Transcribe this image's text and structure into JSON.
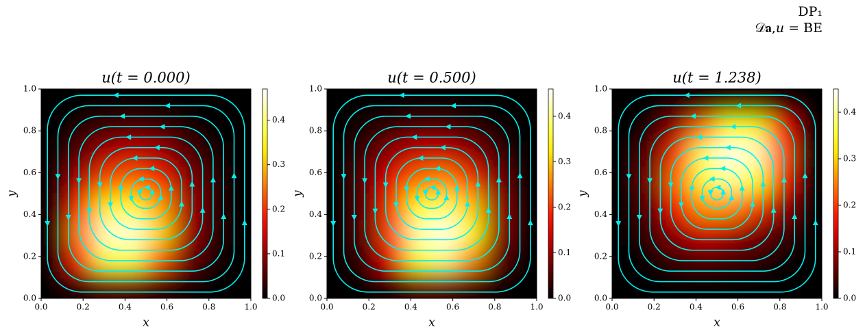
{
  "annotation": [
    "DP₁",
    "𝒟𝐚,𝑢 = BE"
  ],
  "chart_data": [
    {
      "type": "heatmap",
      "title": "u(t = 0.000)",
      "xlabel": "x",
      "ylabel": "y",
      "colormap": "hot",
      "xlim": [
        0,
        1
      ],
      "ylim": [
        0,
        1
      ],
      "xticks": [
        {
          "value": 0,
          "label": "0.0"
        },
        0.2,
        0.4,
        0.6,
        0.8,
        {
          "value": 1,
          "label": "1.0"
        }
      ],
      "yticks": [
        {
          "value": 0,
          "label": "0.0"
        },
        0.2,
        0.4,
        0.6,
        0.8,
        {
          "value": 1,
          "label": "1.0"
        }
      ],
      "clim": [
        0,
        0.47
      ],
      "cticks": [
        {
          "value": 0,
          "label": "0.0"
        },
        0.1,
        0.2,
        0.3,
        0.4
      ],
      "z": [
        [
          0,
          0,
          0,
          0,
          0,
          0,
          0,
          0
        ],
        [
          0,
          0.02,
          0.04,
          0.05,
          0.04,
          0.02,
          0,
          0
        ],
        [
          0,
          0.06,
          0.12,
          0.14,
          0.12,
          0.06,
          0.02,
          0
        ],
        [
          0,
          0.12,
          0.22,
          0.24,
          0.2,
          0.1,
          0.03,
          0
        ],
        [
          0,
          0.2,
          0.33,
          0.36,
          0.28,
          0.12,
          0.03,
          0
        ],
        [
          0,
          0.26,
          0.44,
          0.45,
          0.32,
          0.12,
          0.03,
          0
        ],
        [
          0,
          0.2,
          0.38,
          0.38,
          0.24,
          0.08,
          0.02,
          0
        ],
        [
          0,
          0.04,
          0.08,
          0.08,
          0.05,
          0.02,
          0,
          0
        ]
      ]
    },
    {
      "type": "heatmap",
      "title": "u(t = 0.500)",
      "xlabel": "x",
      "ylabel": "y",
      "colormap": "hot",
      "xlim": [
        0,
        1
      ],
      "ylim": [
        0,
        1
      ],
      "xticks": [
        {
          "value": 0,
          "label": "0.0"
        },
        0.2,
        0.4,
        0.6,
        0.8,
        {
          "value": 1,
          "label": "1.0"
        }
      ],
      "yticks": [
        {
          "value": 0,
          "label": "0.0"
        },
        0.2,
        0.4,
        0.6,
        0.8,
        {
          "value": 1,
          "label": "1.0"
        }
      ],
      "clim": [
        0,
        0.46
      ],
      "cticks": [
        {
          "value": 0,
          "label": "0.0"
        },
        0.1,
        0.2,
        0.3,
        0.4
      ],
      "z": [
        [
          0,
          0,
          0,
          0,
          0,
          0,
          0,
          0
        ],
        [
          0,
          0.02,
          0.03,
          0.05,
          0.05,
          0.03,
          0.01,
          0
        ],
        [
          0,
          0.04,
          0.1,
          0.14,
          0.14,
          0.1,
          0.04,
          0
        ],
        [
          0,
          0.06,
          0.16,
          0.24,
          0.26,
          0.2,
          0.08,
          0
        ],
        [
          0,
          0.06,
          0.2,
          0.34,
          0.38,
          0.3,
          0.1,
          0
        ],
        [
          0,
          0.06,
          0.22,
          0.42,
          0.45,
          0.34,
          0.1,
          0
        ],
        [
          0,
          0.04,
          0.16,
          0.36,
          0.4,
          0.26,
          0.06,
          0
        ],
        [
          0,
          0,
          0.03,
          0.08,
          0.08,
          0.05,
          0.01,
          0
        ]
      ]
    },
    {
      "type": "heatmap",
      "title": "u(t = 1.238)",
      "xlabel": "x",
      "ylabel": "y",
      "colormap": "hot",
      "xlim": [
        0,
        1
      ],
      "ylim": [
        0,
        1
      ],
      "xticks": [
        {
          "value": 0,
          "label": "0.0"
        },
        0.2,
        0.4,
        0.6,
        0.8,
        {
          "value": 1,
          "label": "1.0"
        }
      ],
      "yticks": [
        {
          "value": 0,
          "label": "0.0"
        },
        0.2,
        0.4,
        0.6,
        0.8,
        {
          "value": 1,
          "label": "1.0"
        }
      ],
      "clim": [
        0,
        0.45
      ],
      "cticks": [
        {
          "value": 0,
          "label": "0.0"
        },
        0.1,
        0.2,
        0.3,
        0.4
      ],
      "z": [
        [
          0,
          0,
          0,
          0.02,
          0.04,
          0.04,
          0.02,
          0
        ],
        [
          0,
          0.02,
          0.1,
          0.24,
          0.34,
          0.32,
          0.16,
          0
        ],
        [
          0,
          0.06,
          0.2,
          0.38,
          0.44,
          0.42,
          0.22,
          0
        ],
        [
          0,
          0.08,
          0.24,
          0.36,
          0.4,
          0.34,
          0.18,
          0
        ],
        [
          0,
          0.06,
          0.18,
          0.26,
          0.26,
          0.2,
          0.1,
          0
        ],
        [
          0,
          0.04,
          0.1,
          0.14,
          0.12,
          0.08,
          0.04,
          0
        ],
        [
          0,
          0.01,
          0.04,
          0.05,
          0.04,
          0.03,
          0.01,
          0
        ],
        [
          0,
          0,
          0,
          0,
          0,
          0,
          0,
          0
        ]
      ]
    }
  ]
}
